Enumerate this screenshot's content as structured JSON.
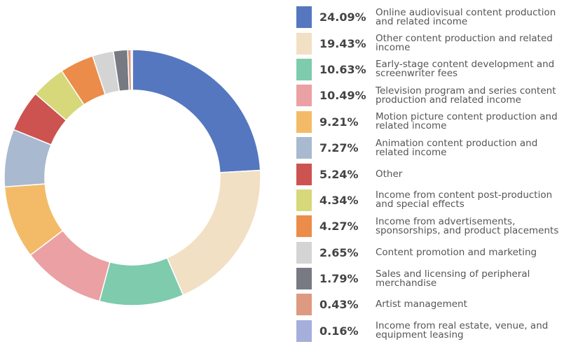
{
  "chart_data": {
    "type": "donut",
    "categories": [
      "Online audiovisual content production and related income",
      "Other content production and related income",
      "Early-stage content development and screenwriter fees",
      "Television program and series content production and related income",
      "Motion picture content production and related income",
      "Animation content production and related income",
      "Other",
      "Income from content post-production and special effects",
      "Income from advertisements, sponsorships, and product placements",
      "Content promotion and marketing",
      "Sales and licensing of peripheral merchandise",
      "Artist management",
      "Income from real estate, venue, and equipment leasing"
    ],
    "values": [
      24.09,
      19.43,
      10.63,
      10.49,
      9.21,
      7.27,
      5.24,
      4.34,
      4.27,
      2.65,
      1.79,
      0.43,
      0.16
    ],
    "value_labels": [
      "24.09%",
      "19.43%",
      "10.63%",
      "10.49%",
      "9.21%",
      "7.27%",
      "5.24%",
      "4.34%",
      "4.27%",
      "2.65%",
      "1.79%",
      "0.43%",
      "0.16%"
    ],
    "colors": [
      "#5577c0",
      "#f2e0c4",
      "#7ecbae",
      "#eba0a4",
      "#f3bb68",
      "#a8b9d0",
      "#cc5350",
      "#d6d87a",
      "#eb8c4a",
      "#d4d4d4",
      "#777a82",
      "#dd9a80",
      "#a6aedb"
    ],
    "legend": "right"
  }
}
